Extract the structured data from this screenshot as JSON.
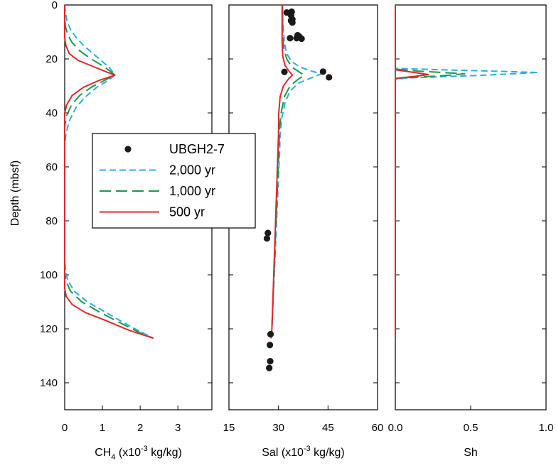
{
  "y_axis": {
    "label": "Depth (mbsf)",
    "range": [
      0,
      150
    ],
    "ticks": [
      0,
      20,
      40,
      60,
      80,
      100,
      120,
      140
    ]
  },
  "series_styles": {
    "2,000 yr": {
      "color": "#29aee0",
      "dash": "dashed"
    },
    "1,000 yr": {
      "color": "#1a9a4a",
      "dash": "long-dashed"
    },
    "500 yr": {
      "color": "#e0282c",
      "dash": "solid"
    },
    "UBGH2-7": {
      "color": "#1a1a1a",
      "marker": "filled-circle"
    }
  },
  "legend": {
    "placement": "left, overlapping first panel",
    "entries": [
      {
        "label": "UBGH2-7",
        "key": "UBGH2-7"
      },
      {
        "label": "2,000 yr",
        "key": "2,000 yr"
      },
      {
        "label": "1,000 yr",
        "key": "1,000 yr"
      },
      {
        "label": "500 yr",
        "key": "500 yr"
      }
    ]
  },
  "chart_data": [
    {
      "type": "line",
      "xlabel_main": "CH",
      "xlabel_sub": "4",
      "xlabel_pre": " (x10",
      "xlabel_sup": "-3",
      "xlabel_post": " kg/kg)",
      "xlim": [
        0,
        3.9
      ],
      "xticks": [
        {
          "value": 0,
          "label": "0"
        },
        {
          "value": 1,
          "label": "1"
        },
        {
          "value": 2,
          "label": "2"
        },
        {
          "value": 3,
          "label": "3"
        }
      ],
      "y_is_depth": true,
      "series": [
        {
          "name": "2,000 yr",
          "points": [
            [
              0,
              0
            ],
            [
              0.02,
              3
            ],
            [
              0.06,
              6
            ],
            [
              0.15,
              9
            ],
            [
              0.3,
              12
            ],
            [
              0.5,
              15
            ],
            [
              0.75,
              18
            ],
            [
              1.0,
              21
            ],
            [
              1.2,
              23.5
            ],
            [
              1.33,
              26
            ],
            [
              1.15,
              28
            ],
            [
              0.85,
              30.5
            ],
            [
              0.55,
              34
            ],
            [
              0.3,
              38
            ],
            [
              0.12,
              43
            ],
            [
              0.03,
              48
            ],
            [
              0,
              52
            ],
            [
              0,
              95
            ],
            [
              0.02,
              98
            ],
            [
              0.08,
              102
            ],
            [
              0.25,
              106
            ],
            [
              0.6,
              110
            ],
            [
              1.1,
              114
            ],
            [
              1.6,
              118
            ],
            [
              2.0,
              121
            ],
            [
              2.35,
              123.5
            ]
          ]
        },
        {
          "name": "1,000 yr",
          "points": [
            [
              0,
              0
            ],
            [
              0,
              5
            ],
            [
              0.02,
              8
            ],
            [
              0.08,
              11
            ],
            [
              0.2,
              14
            ],
            [
              0.4,
              17
            ],
            [
              0.7,
              20
            ],
            [
              1.0,
              22.5
            ],
            [
              1.2,
              24.5
            ],
            [
              1.33,
              26
            ],
            [
              1.05,
              28
            ],
            [
              0.7,
              30.5
            ],
            [
              0.4,
              33.5
            ],
            [
              0.18,
              37
            ],
            [
              0.05,
              41
            ],
            [
              0,
              45
            ],
            [
              0,
              99
            ],
            [
              0.03,
              102
            ],
            [
              0.15,
              106
            ],
            [
              0.45,
              110
            ],
            [
              0.95,
              114
            ],
            [
              1.5,
              118
            ],
            [
              2.0,
              121.5
            ],
            [
              2.35,
              123.5
            ]
          ]
        },
        {
          "name": "500 yr",
          "points": [
            [
              0,
              0
            ],
            [
              0,
              12
            ],
            [
              0.03,
              15
            ],
            [
              0.12,
              18
            ],
            [
              0.35,
              20.5
            ],
            [
              0.7,
              22.5
            ],
            [
              1.05,
              24.5
            ],
            [
              1.33,
              26
            ],
            [
              0.9,
              28
            ],
            [
              0.5,
              30.5
            ],
            [
              0.2,
              33.5
            ],
            [
              0.05,
              37
            ],
            [
              0,
              40
            ],
            [
              0,
              105
            ],
            [
              0.04,
              108
            ],
            [
              0.2,
              111
            ],
            [
              0.55,
              114
            ],
            [
              1.1,
              117
            ],
            [
              1.7,
              120.5
            ],
            [
              2.35,
              123.5
            ]
          ]
        }
      ]
    },
    {
      "type": "line",
      "xlabel_main": "Sal",
      "xlabel_pre": " (x10",
      "xlabel_sup": "-3",
      "xlabel_post": " kg/kg)",
      "xlim": [
        15,
        60
      ],
      "xticks": [
        {
          "value": 15,
          "label": "15"
        },
        {
          "value": 30,
          "label": "30"
        },
        {
          "value": 45,
          "label": "45"
        },
        {
          "value": 60,
          "label": "60"
        }
      ],
      "y_is_depth": true,
      "series": [
        {
          "name": "2,000 yr",
          "points": [
            [
              31.2,
              0
            ],
            [
              31.4,
              8
            ],
            [
              31.8,
              14
            ],
            [
              32.5,
              18
            ],
            [
              34,
              21
            ],
            [
              36.5,
              23
            ],
            [
              40,
              24.5
            ],
            [
              43,
              25.5
            ],
            [
              40,
              27
            ],
            [
              36,
              29
            ],
            [
              33.5,
              32
            ],
            [
              32,
              36
            ],
            [
              31,
              42
            ],
            [
              30.5,
              48
            ],
            [
              30.3,
              55
            ],
            [
              28,
              120
            ],
            [
              27.8,
              123.5
            ]
          ]
        },
        {
          "name": "1,000 yr",
          "points": [
            [
              31.2,
              0
            ],
            [
              31.3,
              10
            ],
            [
              31.6,
              16
            ],
            [
              32.5,
              20
            ],
            [
              34,
              23
            ],
            [
              36.5,
              25
            ],
            [
              37.8,
              26
            ],
            [
              36,
              27.5
            ],
            [
              33.5,
              30
            ],
            [
              31.8,
              34
            ],
            [
              30.8,
              40
            ],
            [
              30.3,
              46
            ],
            [
              30.1,
              55
            ],
            [
              28,
              120
            ],
            [
              27.8,
              123.5
            ]
          ]
        },
        {
          "name": "500 yr",
          "points": [
            [
              31.1,
              0
            ],
            [
              31.1,
              14
            ],
            [
              31.3,
              19
            ],
            [
              32,
              22.5
            ],
            [
              33.2,
              24.5
            ],
            [
              34.2,
              26
            ],
            [
              33,
              27.5
            ],
            [
              31.5,
              30
            ],
            [
              30.5,
              34
            ],
            [
              30.1,
              40
            ],
            [
              30,
              48
            ],
            [
              28,
              120
            ],
            [
              27.8,
              123.5
            ]
          ]
        },
        {
          "name": "UBGH2-7",
          "points": [
            [
              32.5,
              2.8
            ],
            [
              34,
              2.5
            ],
            [
              33.8,
              3.8
            ],
            [
              34.2,
              5.3
            ],
            [
              33.8,
              5.8
            ],
            [
              34.2,
              6.5
            ],
            [
              35.8,
              11.2
            ],
            [
              36.3,
              11.7
            ],
            [
              35.5,
              12.3
            ],
            [
              37,
              12.5
            ],
            [
              33.5,
              12.3
            ],
            [
              31.8,
              24.8
            ],
            [
              43.5,
              24.7
            ],
            [
              45.3,
              26.8
            ],
            [
              26.8,
              84.5
            ],
            [
              26.5,
              86.5
            ],
            [
              27.6,
              122
            ],
            [
              27.4,
              126
            ],
            [
              27.5,
              132
            ],
            [
              27.2,
              134.5
            ]
          ]
        }
      ]
    },
    {
      "type": "line",
      "xlabel_main": "Sh",
      "xlim": [
        0,
        1.0
      ],
      "xticks": [
        {
          "value": 0,
          "label": "0.0"
        },
        {
          "value": 0.5,
          "label": "0.5"
        },
        {
          "value": 1.0,
          "label": "1.0"
        }
      ],
      "y_is_depth": true,
      "series": [
        {
          "name": "2,000 yr",
          "points": [
            [
              0,
              0
            ],
            [
              0,
              23.5
            ],
            [
              0.3,
              24
            ],
            [
              0.95,
              25
            ],
            [
              0.6,
              26
            ],
            [
              0.1,
              27
            ],
            [
              0,
              27.5
            ],
            [
              0,
              123.5
            ]
          ]
        },
        {
          "name": "1,000 yr",
          "points": [
            [
              0,
              0
            ],
            [
              0,
              23.8
            ],
            [
              0.15,
              24.5
            ],
            [
              0.46,
              25.5
            ],
            [
              0.3,
              26.3
            ],
            [
              0.05,
              27
            ],
            [
              0,
              27.3
            ],
            [
              0,
              123.5
            ]
          ]
        },
        {
          "name": "500 yr",
          "points": [
            [
              0,
              0
            ],
            [
              0,
              24
            ],
            [
              0.1,
              24.8
            ],
            [
              0.22,
              25.8
            ],
            [
              0.12,
              26.5
            ],
            [
              0,
              27.2
            ],
            [
              0,
              123.5
            ]
          ]
        }
      ]
    }
  ]
}
